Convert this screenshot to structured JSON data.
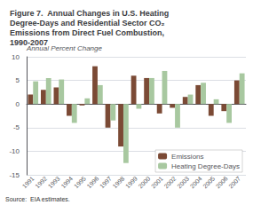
{
  "chart_data": {
    "type": "bar",
    "title": "Figure 7.  Annual Changes in U.S. Heating\nDegree-Days and Residential Sector CO₂\nEmissions from Direct Fuel Combustion,\n1990-2007",
    "ylabel": "Annual Percent Change",
    "annotations": [
      "Source:  EIA estimates."
    ],
    "categories": [
      "1991",
      "1992",
      "1993",
      "1994",
      "1995",
      "1996",
      "1997",
      "1998",
      "1999",
      "2000",
      "2001",
      "2002",
      "2003",
      "2004",
      "2005",
      "2006",
      "2007"
    ],
    "series": [
      {
        "name": "Emissions",
        "color": "#7B4A35",
        "values": [
          2.0,
          3.0,
          3.5,
          -2.5,
          -0.3,
          8.0,
          -5.0,
          -9.0,
          6.0,
          5.5,
          -2.0,
          -0.8,
          1.5,
          4.0,
          -2.5,
          -1.5,
          5.0
        ]
      },
      {
        "name": "Heating Degree-Days",
        "color": "#A8C8A0",
        "values": [
          4.8,
          5.5,
          5.2,
          -4.0,
          1.2,
          4.0,
          -3.5,
          -12.5,
          -1.0,
          5.5,
          7.0,
          -5.0,
          2.0,
          4.5,
          1.0,
          -4.0,
          6.5
        ]
      }
    ],
    "ylim": [
      -15,
      10
    ],
    "yticks": [
      -15,
      -10,
      -5,
      0,
      5,
      10
    ],
    "grid": true,
    "legend": "lower right"
  }
}
